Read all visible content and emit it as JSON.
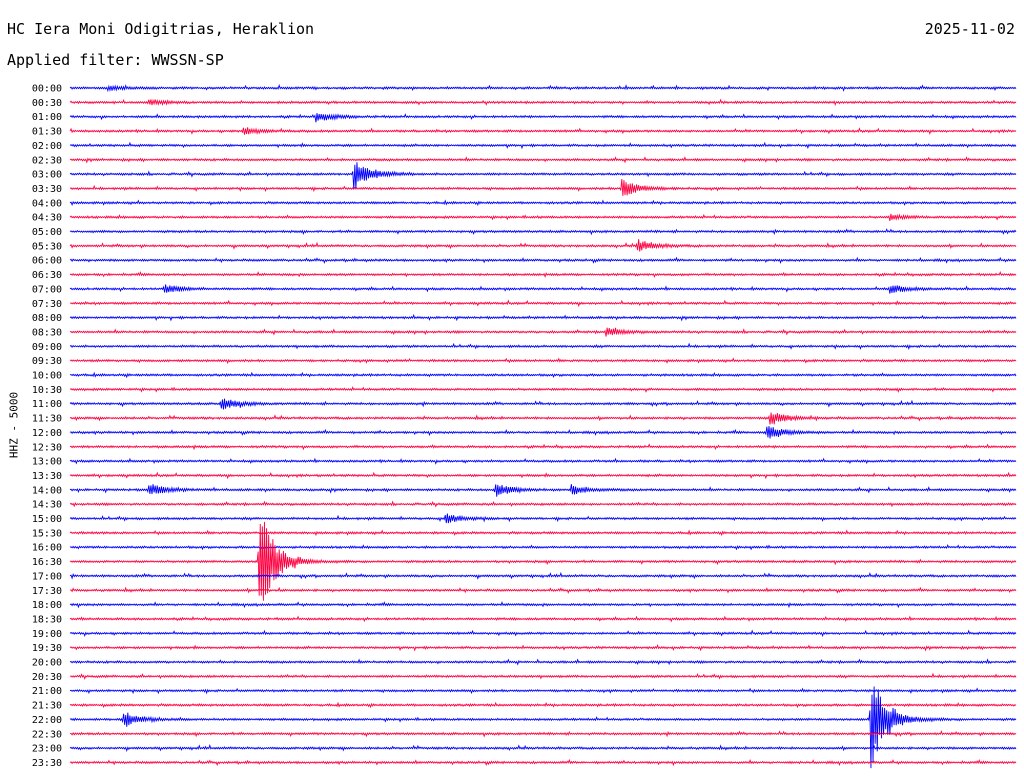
{
  "header": {
    "station": "HC Iera Moni Odigitrias, Heraklion",
    "date": "2025-11-02",
    "filter_label": "Applied filter: WWSSN-SP"
  },
  "side_label": "HHZ - 5000",
  "colors": {
    "odd_trace": "#0000ff",
    "even_trace": "#ff0040",
    "background": "#ffffff",
    "text": "#000000"
  },
  "chart_data": {
    "type": "helicorder",
    "title": "HC Iera Moni Odigitrias, Heraklion",
    "date": "2025-11-02",
    "channel_label": "HHZ - 5000",
    "row_interval_minutes": 30,
    "row_labels": [
      "00:00",
      "00:30",
      "01:00",
      "01:30",
      "02:00",
      "02:30",
      "03:00",
      "03:30",
      "04:00",
      "04:30",
      "05:00",
      "05:30",
      "06:00",
      "06:30",
      "07:00",
      "07:30",
      "08:00",
      "08:30",
      "09:00",
      "09:30",
      "10:00",
      "10:30",
      "11:00",
      "11:30",
      "12:00",
      "12:30",
      "13:00",
      "13:30",
      "14:00",
      "14:30",
      "15:00",
      "15:30",
      "16:00",
      "16:30",
      "17:00",
      "17:30",
      "18:00",
      "18:30",
      "19:00",
      "19:30",
      "20:00",
      "20:30",
      "21:00",
      "21:30",
      "22:00",
      "22:30",
      "23:00",
      "23:30"
    ],
    "trace_colors": [
      "#0000ff",
      "#ff0040"
    ],
    "events": [
      {
        "row": "00:00",
        "minute": 1.2,
        "amplitude": 0.15
      },
      {
        "row": "00:30",
        "minute": 2.5,
        "amplitude": 0.2
      },
      {
        "row": "01:00",
        "minute": 7.8,
        "amplitude": 0.35
      },
      {
        "row": "01:30",
        "minute": 5.5,
        "amplitude": 0.25
      },
      {
        "row": "03:00",
        "minute": 9.0,
        "amplitude": 1.2
      },
      {
        "row": "03:30",
        "minute": 17.5,
        "amplitude": 0.7
      },
      {
        "row": "04:30",
        "minute": 26.0,
        "amplitude": 0.2
      },
      {
        "row": "05:30",
        "minute": 18.0,
        "amplitude": 0.45
      },
      {
        "row": "07:00",
        "minute": 3.0,
        "amplitude": 0.3
      },
      {
        "row": "07:00",
        "minute": 26.0,
        "amplitude": 0.3
      },
      {
        "row": "08:30",
        "minute": 17.0,
        "amplitude": 0.3
      },
      {
        "row": "11:00",
        "minute": 4.8,
        "amplitude": 0.45
      },
      {
        "row": "11:30",
        "minute": 22.2,
        "amplitude": 0.5
      },
      {
        "row": "12:00",
        "minute": 22.1,
        "amplitude": 0.55
      },
      {
        "row": "14:00",
        "minute": 2.5,
        "amplitude": 0.45
      },
      {
        "row": "14:00",
        "minute": 13.5,
        "amplitude": 0.5
      },
      {
        "row": "14:00",
        "minute": 15.9,
        "amplitude": 0.35
      },
      {
        "row": "15:00",
        "minute": 11.9,
        "amplitude": 0.35
      },
      {
        "row": "16:30",
        "minute": 6.0,
        "amplitude": 4.0
      },
      {
        "row": "22:00",
        "minute": 1.7,
        "amplitude": 0.6
      },
      {
        "row": "22:00",
        "minute": 25.4,
        "amplitude": 3.5
      }
    ]
  }
}
